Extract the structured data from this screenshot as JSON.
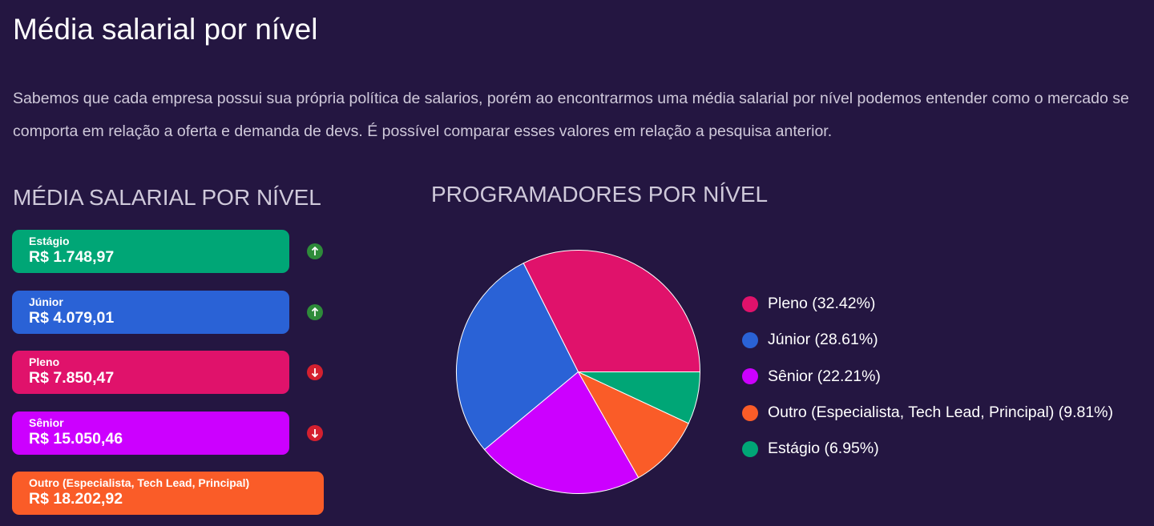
{
  "header": {
    "title": "Média salarial por nível",
    "intro": "Sabemos que cada empresa possui sua própria política de salarios, porém ao encontrarmos uma média salarial por nível podemos entender como o mercado se comporta em relação a oferta e demanda de devs. É possível comparar esses valores em relação a pesquisa anterior."
  },
  "salary_section": {
    "title": "MÉDIA SALARIAL POR NÍVEL",
    "cards": [
      {
        "label": "Estágio",
        "value": "R$ 1.748,97",
        "color": "#00a676",
        "trend": "up",
        "trend_color": "#2e8b3a",
        "trend_icon": "arrow-up-icon"
      },
      {
        "label": "Júnior",
        "value": "R$ 4.079,01",
        "color": "#2a62d6",
        "trend": "up",
        "trend_color": "#2e8b3a",
        "trend_icon": "arrow-up-icon"
      },
      {
        "label": "Pleno",
        "value": "R$ 7.850,47",
        "color": "#e0126b",
        "trend": "down",
        "trend_color": "#d4202f",
        "trend_icon": "arrow-down-icon"
      },
      {
        "label": "Sênior",
        "value": "R$ 15.050,46",
        "color": "#cc00ff",
        "trend": "down",
        "trend_color": "#d4202f",
        "trend_icon": "arrow-down-icon"
      },
      {
        "label": "Outro (Especialista, Tech Lead, Principal)",
        "value": "R$ 18.202,92",
        "color": "#fa5c28"
      }
    ]
  },
  "chart_section": {
    "title": "PROGRAMADORES POR NÍVEL"
  },
  "chart_data": {
    "type": "pie",
    "title": "PROGRAMADORES POR NÍVEL",
    "unit": "%",
    "slices": [
      {
        "name": "Pleno",
        "value": 32.42,
        "color": "#e0126b",
        "legend": "Pleno (32.42%)"
      },
      {
        "name": "Júnior",
        "value": 28.61,
        "color": "#2a62d6",
        "legend": "Júnior (28.61%)"
      },
      {
        "name": "Sênior",
        "value": 22.21,
        "color": "#cc00ff",
        "legend": "Sênior (22.21%)"
      },
      {
        "name": "Outro (Especialista, Tech Lead, Principal)",
        "value": 9.81,
        "color": "#fa5c28",
        "legend": "Outro (Especialista, Tech Lead, Principal) (9.81%)"
      },
      {
        "name": "Estágio",
        "value": 6.95,
        "color": "#00a676",
        "legend": "Estágio (6.95%)"
      }
    ],
    "legend_position": "right",
    "direction": "counterclockwise"
  }
}
